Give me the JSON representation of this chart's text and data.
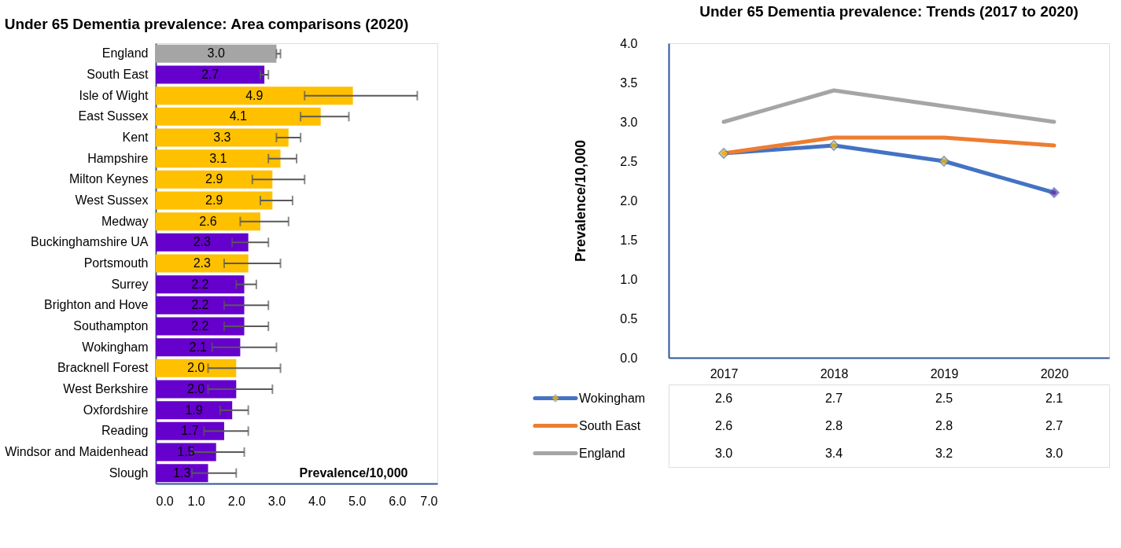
{
  "chart_data": [
    {
      "type": "bar",
      "orientation": "horizontal",
      "title": "Under 65 Dementia prevalence: Area comparisons (2020)",
      "xlabel": "Prevalence/10,000",
      "categories": [
        "England",
        "South East",
        "Isle of Wight",
        "East Sussex",
        "Kent",
        "Hampshire",
        "Milton Keynes",
        "West Sussex",
        "Medway",
        "Buckinghamshire UA",
        "Portsmouth",
        "Surrey",
        "Brighton and Hove",
        "Southampton",
        "Wokingham",
        "Bracknell Forest",
        "West Berkshire",
        "Oxfordshire",
        "Reading",
        "Windsor and Maidenhead",
        "Slough"
      ],
      "values": [
        3.0,
        2.7,
        4.9,
        4.1,
        3.3,
        3.1,
        2.9,
        2.9,
        2.6,
        2.3,
        2.3,
        2.2,
        2.2,
        2.2,
        2.1,
        2.0,
        2.0,
        1.9,
        1.7,
        1.5,
        1.3
      ],
      "colors": [
        "#a5a5a5",
        "#6600cc",
        "#ffc000",
        "#ffc000",
        "#ffc000",
        "#ffc000",
        "#ffc000",
        "#ffc000",
        "#ffc000",
        "#6600cc",
        "#ffc000",
        "#6600cc",
        "#6600cc",
        "#6600cc",
        "#6600cc",
        "#ffc000",
        "#6600cc",
        "#6600cc",
        "#6600cc",
        "#6600cc",
        "#6600cc"
      ],
      "errors": [
        [
          3.0,
          3.1
        ],
        [
          2.6,
          2.8
        ],
        [
          3.7,
          6.5
        ],
        [
          3.6,
          4.8
        ],
        [
          3.0,
          3.6
        ],
        [
          2.8,
          3.5
        ],
        [
          2.4,
          3.7
        ],
        [
          2.6,
          3.4
        ],
        [
          2.1,
          3.3
        ],
        [
          1.9,
          2.8
        ],
        [
          1.7,
          3.1
        ],
        [
          2.0,
          2.5
        ],
        [
          1.7,
          2.8
        ],
        [
          1.7,
          2.8
        ],
        [
          1.4,
          3.0
        ],
        [
          1.3,
          3.1
        ],
        [
          1.3,
          2.9
        ],
        [
          1.6,
          2.3
        ],
        [
          1.2,
          2.3
        ],
        [
          0.9,
          2.2
        ],
        [
          0.9,
          2.0
        ]
      ],
      "value_labels": [
        "3.0",
        "2.7",
        "4.9",
        "4.1",
        "3.3",
        "3.1",
        "2.9",
        "2.9",
        "2.6",
        "2.3",
        "2.3",
        "2.2",
        "2.2",
        "2.2",
        "2.1",
        "2.0",
        "2.0",
        "1.9",
        "1.7",
        "1.5",
        "1.3"
      ],
      "xlim": [
        0,
        7
      ],
      "xticks": [
        {
          "value": 0,
          "label": "0.0"
        },
        {
          "value": 1,
          "label": "1.0"
        },
        {
          "value": 2,
          "label": "2.0"
        },
        {
          "value": 3,
          "label": "3.0"
        },
        {
          "value": 4,
          "label": "4.0"
        },
        {
          "value": 5,
          "label": "5.0"
        },
        {
          "value": 6,
          "label": "6.0"
        },
        {
          "value": 7,
          "label": "7.0"
        }
      ]
    },
    {
      "type": "line",
      "title": "Under 65 Dementia prevalence: Trends (2017 to 2020)",
      "ylabel": "Prevalence/10,000",
      "categories": [
        "2017",
        "2018",
        "2019",
        "2020"
      ],
      "series": [
        {
          "name": "Wokingham",
          "color": "#4472c4",
          "values": [
            2.6,
            2.7,
            2.5,
            2.1
          ],
          "value_labels": [
            "2.6",
            "2.7",
            "2.5",
            "2.1"
          ],
          "marker": "diamond",
          "colors": [
            "#ffc000",
            "#ffc000",
            "#ffc000",
            "#7030a0"
          ]
        },
        {
          "name": "South East",
          "color": "#ed7d31",
          "values": [
            2.6,
            2.8,
            2.8,
            2.7
          ],
          "value_labels": [
            "2.6",
            "2.8",
            "2.8",
            "2.7"
          ]
        },
        {
          "name": "England",
          "color": "#a5a5a5",
          "values": [
            3.0,
            3.4,
            3.2,
            3.0
          ],
          "value_labels": [
            "3.0",
            "3.4",
            "3.2",
            "3.0"
          ]
        }
      ],
      "legend": "bottom",
      "ylim": [
        0,
        4
      ],
      "yticks": [
        {
          "value": 0,
          "label": "0.0"
        },
        {
          "value": 0.5,
          "label": "0.5"
        },
        {
          "value": 1,
          "label": "1.0"
        },
        {
          "value": 1.5,
          "label": "1.5"
        },
        {
          "value": 2,
          "label": "2.0"
        },
        {
          "value": 2.5,
          "label": "2.5"
        },
        {
          "value": 3,
          "label": "3.0"
        },
        {
          "value": 3.5,
          "label": "3.5"
        },
        {
          "value": 4,
          "label": "4.0"
        }
      ]
    }
  ]
}
